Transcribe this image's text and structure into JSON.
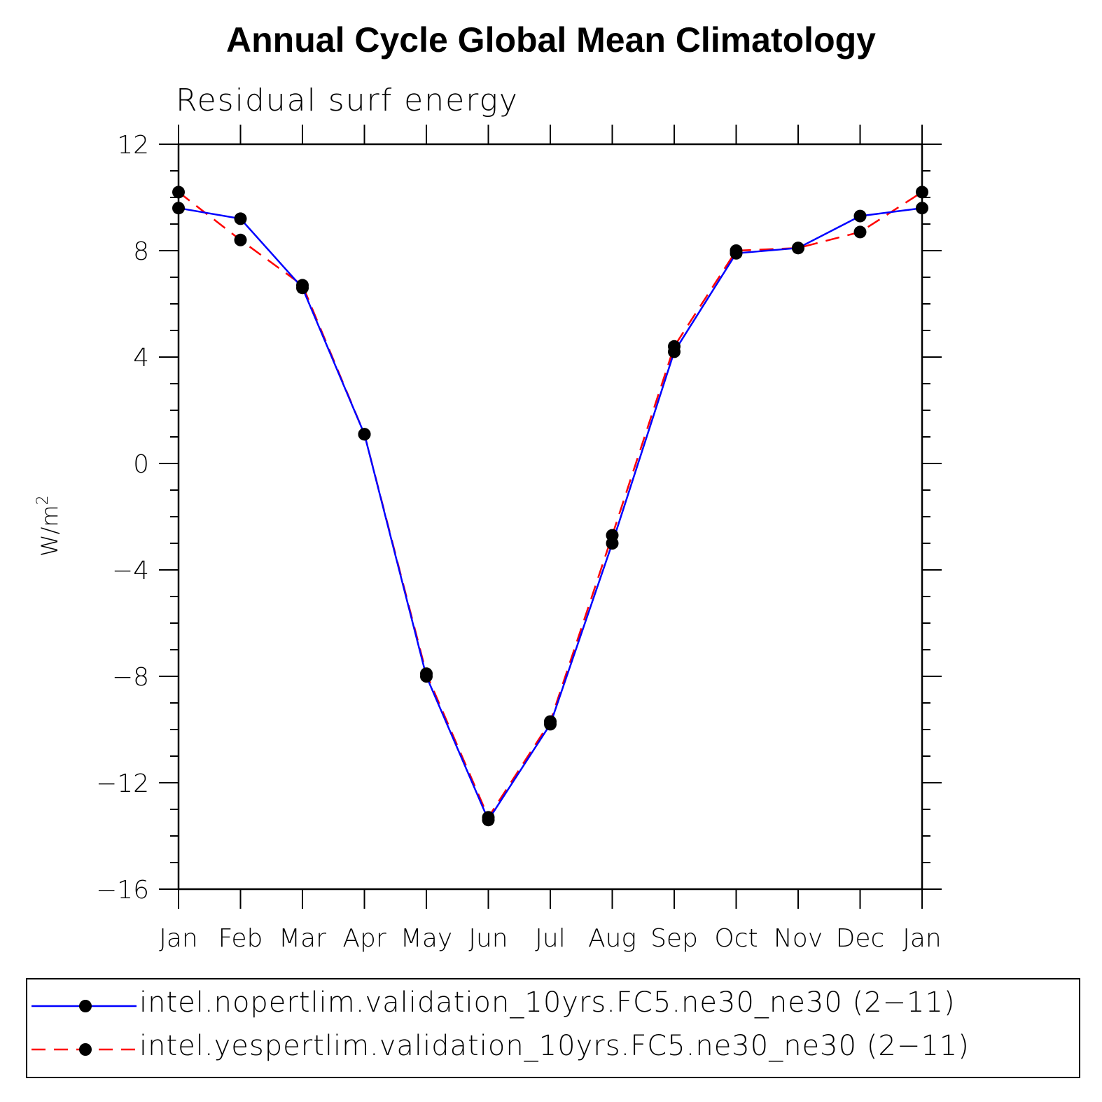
{
  "chart_data": {
    "type": "line",
    "title": "Annual Cycle Global Mean Climatology",
    "subtitle": "Residual surf energy",
    "ylabel": "W/m",
    "ylabel_sup": "2",
    "categories": [
      "Jan",
      "Feb",
      "Mar",
      "Apr",
      "May",
      "Jun",
      "Jul",
      "Aug",
      "Sep",
      "Oct",
      "Nov",
      "Dec",
      "Jan"
    ],
    "ylim": [
      -16,
      12
    ],
    "yticks": [
      12,
      8,
      4,
      0,
      -4,
      -8,
      -12,
      -16
    ],
    "ytick_labels": [
      "12",
      "8",
      "4",
      "0",
      "−4",
      "−8",
      "−12",
      "−16"
    ],
    "legend_placement": "bottom",
    "series": [
      {
        "name": "intel.nopertlim.validation_10yrs.FC5.ne30_ne30 (2−11)",
        "color": "#0000ff",
        "dash": "solid",
        "marker": "filled-circle",
        "values": [
          9.6,
          9.2,
          6.6,
          1.1,
          -8.0,
          -13.4,
          -9.8,
          -3.0,
          4.2,
          7.9,
          8.1,
          9.3,
          9.6
        ]
      },
      {
        "name": "intel.yespertlim.validation_10yrs.FC5.ne30_ne30 (2−11)",
        "color": "#ff0000",
        "dash": "dashed",
        "marker": "filled-circle",
        "values": [
          10.2,
          8.4,
          6.7,
          1.1,
          -7.9,
          -13.3,
          -9.7,
          -2.7,
          4.4,
          8.0,
          8.1,
          8.7,
          10.2
        ]
      }
    ]
  }
}
